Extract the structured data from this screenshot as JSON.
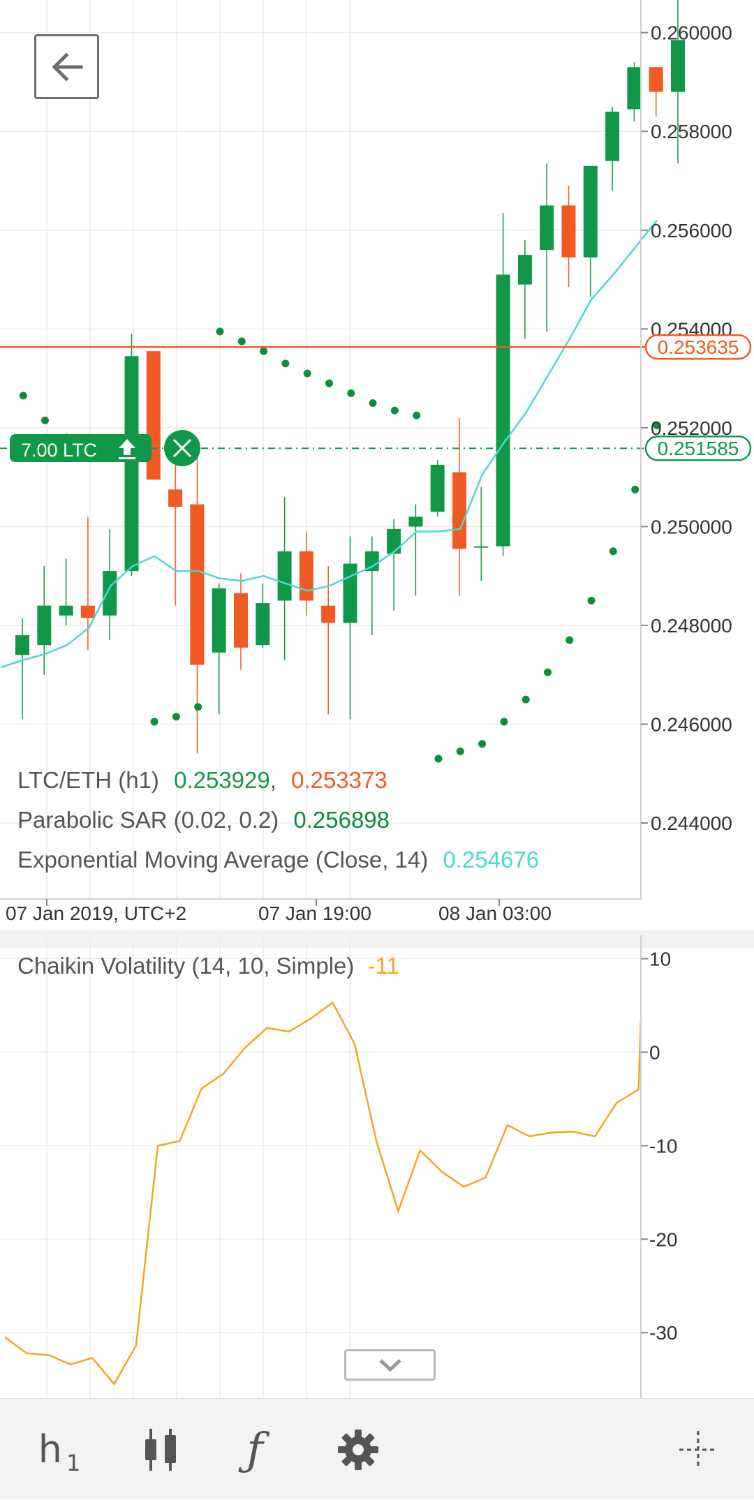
{
  "chart_data": [
    {
      "type": "candlestick",
      "symbol": "LTC/ETH (h1)",
      "timezone": "UTC+2",
      "x_tick_labels": [
        "07 Jan 2019, UTC+2",
        "07 Jan 19:00",
        "08 Jan 03:00"
      ],
      "y_tick_labels": [
        "0.260000",
        "0.258000",
        "0.256000",
        "0.254000",
        "0.252000",
        "0.250000",
        "0.248000",
        "0.246000",
        "0.244000"
      ],
      "ylim": [
        0.24246,
        0.26066
      ],
      "candles": [
        {
          "o": 0.2474,
          "h": 0.24815,
          "l": 0.2461,
          "c": 0.2478
        },
        {
          "o": 0.2476,
          "h": 0.2492,
          "l": 0.247,
          "c": 0.2484
        },
        {
          "o": 0.2482,
          "h": 0.24935,
          "l": 0.248,
          "c": 0.2484
        },
        {
          "o": 0.2484,
          "h": 0.2502,
          "l": 0.2475,
          "c": 0.24815
        },
        {
          "o": 0.2482,
          "h": 0.24995,
          "l": 0.2477,
          "c": 0.2491
        },
        {
          "o": 0.2491,
          "h": 0.2539,
          "l": 0.249,
          "c": 0.25345
        },
        {
          "o": 0.25355,
          "h": 0.25355,
          "l": 0.25095,
          "c": 0.25095
        },
        {
          "o": 0.25075,
          "h": 0.25125,
          "l": 0.2484,
          "c": 0.2504
        },
        {
          "o": 0.25045,
          "h": 0.2514,
          "l": 0.2454,
          "c": 0.2472
        },
        {
          "o": 0.24745,
          "h": 0.24885,
          "l": 0.2462,
          "c": 0.24875
        },
        {
          "o": 0.24865,
          "h": 0.24905,
          "l": 0.2471,
          "c": 0.24755
        },
        {
          "o": 0.2476,
          "h": 0.24885,
          "l": 0.24755,
          "c": 0.24845
        },
        {
          "o": 0.2485,
          "h": 0.2506,
          "l": 0.2473,
          "c": 0.2495
        },
        {
          "o": 0.2495,
          "h": 0.2499,
          "l": 0.2482,
          "c": 0.2485
        },
        {
          "o": 0.2484,
          "h": 0.2492,
          "l": 0.2462,
          "c": 0.24805
        },
        {
          "o": 0.24805,
          "h": 0.2498,
          "l": 0.2461,
          "c": 0.24925
        },
        {
          "o": 0.2491,
          "h": 0.2498,
          "l": 0.2478,
          "c": 0.2495
        },
        {
          "o": 0.24945,
          "h": 0.25015,
          "l": 0.2483,
          "c": 0.24995
        },
        {
          "o": 0.25,
          "h": 0.25045,
          "l": 0.2486,
          "c": 0.2502
        },
        {
          "o": 0.2503,
          "h": 0.25135,
          "l": 0.2502,
          "c": 0.25125
        },
        {
          "o": 0.2511,
          "h": 0.2522,
          "l": 0.2486,
          "c": 0.24955
        },
        {
          "o": 0.2496,
          "h": 0.2508,
          "l": 0.2489,
          "c": 0.2496
        },
        {
          "o": 0.2496,
          "h": 0.25635,
          "l": 0.2494,
          "c": 0.2551
        },
        {
          "o": 0.2549,
          "h": 0.2558,
          "l": 0.2538,
          "c": 0.2555
        },
        {
          "o": 0.2556,
          "h": 0.25735,
          "l": 0.25395,
          "c": 0.2565
        },
        {
          "o": 0.2565,
          "h": 0.2569,
          "l": 0.25485,
          "c": 0.25545
        },
        {
          "o": 0.25545,
          "h": 0.2573,
          "l": 0.25465,
          "c": 0.2573
        },
        {
          "o": 0.2574,
          "h": 0.2585,
          "l": 0.2568,
          "c": 0.2584
        },
        {
          "o": 0.25845,
          "h": 0.2594,
          "l": 0.2582,
          "c": 0.2593
        },
        {
          "o": 0.2593,
          "h": 0.2593,
          "l": 0.2583,
          "c": 0.2588
        },
        {
          "o": 0.2588,
          "h": 0.26066,
          "l": 0.25735,
          "c": 0.25985
        }
      ],
      "parabolic_sar": [
        null,
        0.25265,
        0.25215,
        0.2518,
        null,
        null,
        null,
        0.24605,
        0.24615,
        0.24635,
        0.25395,
        0.25375,
        0.25355,
        0.2533,
        0.2531,
        0.2529,
        0.2527,
        0.2525,
        0.25235,
        0.25225,
        0.2453,
        0.24545,
        0.2456,
        0.24605,
        0.2465,
        0.24705,
        0.2477,
        0.2485,
        0.2495,
        0.25075,
        0.25205
      ],
      "ema": [
        0.24715,
        0.2473,
        0.24742,
        0.2476,
        0.24795,
        0.2488,
        0.2492,
        0.2494,
        0.2491,
        0.2491,
        0.24895,
        0.2489,
        0.249,
        0.24885,
        0.2487,
        0.2488,
        0.249,
        0.2492,
        0.2495,
        0.2499,
        0.2499,
        0.24995,
        0.25105,
        0.2517,
        0.2523,
        0.25305,
        0.2538,
        0.2546,
        0.2551,
        0.25565,
        0.2562
      ],
      "horizontal_lines": [
        {
          "value": 0.253635,
          "label": "0.253635",
          "color": "#ef5a25"
        },
        {
          "value": 0.251585,
          "label": "0.251585",
          "color": "#109848"
        }
      ],
      "colors": {
        "up": "#109848",
        "down": "#ef5a25",
        "ema": "#4dd7d0",
        "sar": "#0f8c3e"
      },
      "grid": true
    },
    {
      "type": "line",
      "title": "Chaikin Volatility (14, 10, Simple)",
      "current_value": "-11",
      "color": "#f2a524",
      "y_tick_labels": [
        "10",
        "0",
        "-10",
        "-20",
        "-30"
      ],
      "ylim": [
        -37,
        12.5
      ],
      "values": [
        -30.5,
        -32.2,
        -32.4,
        -33.4,
        -32.7,
        -35.5,
        -31.4,
        -10.0,
        -9.5,
        -3.9,
        -2.3,
        0.5,
        2.6,
        2.2,
        3.6,
        5.3,
        0.9,
        -9.5,
        -17.0,
        -10.5,
        -12.8,
        -14.4,
        -13.4,
        -7.8,
        -9.0,
        -8.6,
        -8.5,
        -9.0,
        -5.4,
        -4.0,
        3.6
      ],
      "grid": true
    }
  ],
  "position_label": {
    "text": "7.00 LTC"
  },
  "legend": {
    "symbol": "LTC/ETH (h1)",
    "bid": "0.253929",
    "separator": ",",
    "ask": "0.253373",
    "sar_name": "Parabolic SAR (0.02, 0.2)",
    "sar_value": "0.256898",
    "ema_name": "Exponential Moving Average (Close, 14)",
    "ema_value": "0.254676"
  },
  "toolbar": {
    "timeframe_main": "h",
    "timeframe_sub": "1",
    "candle_icon": "candlestick-icon",
    "indicator_icon": "function-icon",
    "settings_icon": "gear-icon",
    "crosshair_icon": "crosshair-icon"
  },
  "icons": {
    "back": "back-arrow-icon",
    "collapse": "chevron-down-icon",
    "upload": "upload-arrow-icon",
    "close": "close-x-icon"
  }
}
